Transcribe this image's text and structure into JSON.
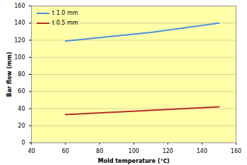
{
  "chart_data": {
    "type": "line",
    "x_label": "Mold temperature (℃)",
    "y_label": "Bar flow (mm)",
    "x": [
      60,
      110,
      150
    ],
    "series": [
      {
        "name": "t 1.0 mm",
        "color": "#4f8fdc",
        "values": [
          119,
          129,
          140
        ]
      },
      {
        "name": "t 0.5 mm",
        "color": "#b5302a",
        "values": [
          33,
          38,
          42
        ]
      }
    ],
    "xlim": [
      40,
      160
    ],
    "xticks": [
      40,
      60,
      80,
      100,
      120,
      140,
      160
    ],
    "ylim": [
      0,
      160
    ],
    "yticks": [
      0,
      20,
      40,
      60,
      80,
      100,
      120,
      140,
      160
    ],
    "grid": true,
    "legend": "upper left"
  }
}
